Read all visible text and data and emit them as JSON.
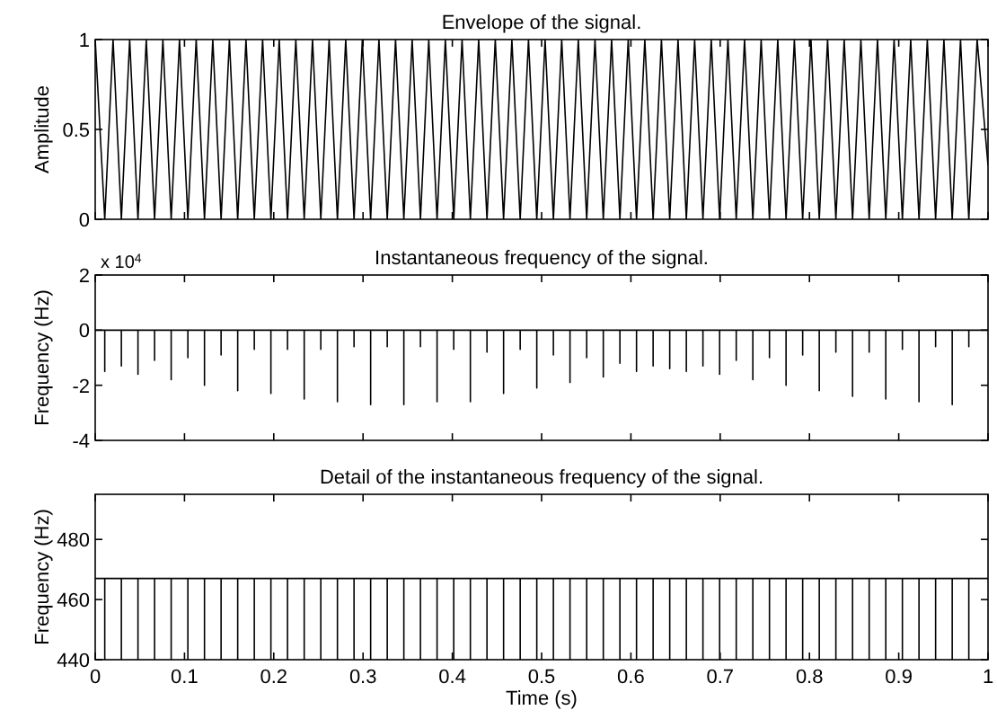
{
  "chart_data": [
    {
      "type": "line",
      "title": "Envelope of the signal.",
      "ylabel": "Amplitude",
      "x": [
        0,
        0.0107,
        0.02,
        0.0293,
        0.0386,
        0.0479,
        0.0572,
        0.0665,
        0.0758,
        0.0851,
        0.0944,
        0.1038,
        0.1131,
        0.1224,
        0.1317,
        0.141,
        0.1503,
        0.1596,
        0.1689,
        0.1782,
        0.1875,
        0.1968,
        0.2061,
        0.2154,
        0.2247,
        0.2341,
        0.2434,
        0.2527,
        0.262,
        0.2713,
        0.2806,
        0.2899,
        0.2992,
        0.3085,
        0.3178,
        0.3271,
        0.3364,
        0.3457,
        0.355,
        0.3643,
        0.3736,
        0.3829,
        0.3922,
        0.4016,
        0.4109,
        0.4202,
        0.4295,
        0.4388,
        0.4481,
        0.4574,
        0.4667,
        0.476,
        0.4853,
        0.4946,
        0.5039,
        0.5132,
        0.5225,
        0.5318,
        0.5411,
        0.5505,
        0.5598,
        0.5691,
        0.5784,
        0.5877,
        0.597,
        0.6063,
        0.6156,
        0.6249,
        0.6342,
        0.6435,
        0.6528,
        0.6621,
        0.6714,
        0.6807,
        0.69,
        0.6994,
        0.7087,
        0.718,
        0.7273,
        0.7366,
        0.7459,
        0.7552,
        0.7645,
        0.7738,
        0.7831,
        0.7924,
        0.8017,
        0.811,
        0.8203,
        0.8296,
        0.8389,
        0.8483,
        0.8576,
        0.8669,
        0.8762,
        0.8855,
        0.8948,
        0.9041,
        0.9134,
        0.9227,
        0.932,
        0.9413,
        0.9506,
        0.9599,
        0.9692,
        0.9785,
        0.9878,
        1
      ],
      "series": [
        {
          "color": "#000000",
          "values": [
            1,
            0,
            1,
            0,
            1,
            0,
            1,
            0,
            1,
            0,
            1,
            0,
            1,
            0,
            1,
            0,
            1,
            0,
            1,
            0,
            1,
            0,
            1,
            0,
            1,
            0,
            1,
            0,
            1,
            0,
            1,
            0,
            1,
            0,
            1,
            0,
            1,
            0,
            1,
            0,
            1,
            0,
            1,
            0,
            1,
            0,
            1,
            0,
            1,
            0,
            1,
            0,
            1,
            0,
            1,
            0,
            1,
            0,
            1,
            0,
            1,
            0,
            1,
            0,
            1,
            0,
            1,
            0,
            1,
            0,
            1,
            0,
            1,
            0,
            1,
            0,
            1,
            0,
            1,
            0,
            1,
            0,
            1,
            0,
            1,
            0,
            1,
            0,
            1,
            0,
            1,
            0,
            1,
            0,
            1,
            0,
            1,
            0,
            1,
            0,
            1,
            0,
            1,
            0,
            1,
            0,
            1,
            0.3
          ]
        }
      ],
      "xlim": [
        0,
        1
      ],
      "ylim": [
        0,
        1
      ],
      "xticks": [
        0,
        0.1,
        0.2,
        0.3,
        0.4,
        0.5,
        0.6,
        0.7,
        0.8,
        0.9,
        1
      ],
      "yticks": [
        0,
        0.5,
        1
      ],
      "tick_labels": "y"
    },
    {
      "type": "line",
      "title": "Instantaneous frequency of the signal.",
      "ylabel": "Frequency (Hz)",
      "annotations": [
        "x 10$^{4}$"
      ],
      "x": [
        0,
        0.0107,
        0.0107,
        0.0107,
        0.0293,
        0.0293,
        0.0293,
        0.0479,
        0.0479,
        0.0479,
        0.0665,
        0.0665,
        0.0665,
        0.0851,
        0.0851,
        0.0851,
        0.1038,
        0.1038,
        0.1038,
        0.1224,
        0.1224,
        0.1224,
        0.141,
        0.141,
        0.141,
        0.1596,
        0.1596,
        0.1596,
        0.1782,
        0.1782,
        0.1782,
        0.1968,
        0.1968,
        0.1968,
        0.2154,
        0.2154,
        0.2154,
        0.2341,
        0.2341,
        0.2341,
        0.2527,
        0.2527,
        0.2527,
        0.2713,
        0.2713,
        0.2713,
        0.2899,
        0.2899,
        0.2899,
        0.3085,
        0.3085,
        0.3085,
        0.3271,
        0.3271,
        0.3271,
        0.3457,
        0.3457,
        0.3457,
        0.3643,
        0.3643,
        0.3643,
        0.3829,
        0.3829,
        0.3829,
        0.4016,
        0.4016,
        0.4016,
        0.4202,
        0.4202,
        0.4202,
        0.4388,
        0.4388,
        0.4388,
        0.4574,
        0.4574,
        0.4574,
        0.476,
        0.476,
        0.476,
        0.4946,
        0.4946,
        0.4946,
        0.5132,
        0.5132,
        0.5132,
        0.5318,
        0.5318,
        0.5318,
        0.5505,
        0.5505,
        0.5505,
        0.5691,
        0.5691,
        0.5691,
        0.5877,
        0.5877,
        0.5877,
        0.6063,
        0.6063,
        0.6063,
        0.6249,
        0.6249,
        0.6249,
        0.6435,
        0.6435,
        0.6435,
        0.6621,
        0.6621,
        0.6621,
        0.6807,
        0.6807,
        0.6807,
        0.6994,
        0.6994,
        0.6994,
        0.718,
        0.718,
        0.718,
        0.7366,
        0.7366,
        0.7366,
        0.7552,
        0.7552,
        0.7552,
        0.7738,
        0.7738,
        0.7738,
        0.7924,
        0.7924,
        0.7924,
        0.811,
        0.811,
        0.811,
        0.8296,
        0.8296,
        0.8296,
        0.8483,
        0.8483,
        0.8483,
        0.8669,
        0.8669,
        0.8669,
        0.8855,
        0.8855,
        0.8855,
        0.9041,
        0.9041,
        0.9041,
        0.9227,
        0.9227,
        0.9227,
        0.9413,
        0.9413,
        0.9413,
        0.9599,
        0.9599,
        0.9599,
        0.9785,
        0.9785,
        0.9785,
        1
      ],
      "series": [
        {
          "color": "#000000",
          "values": [
            0,
            0,
            -1.5,
            0,
            0,
            -1.3,
            0,
            0,
            -1.6,
            0,
            0,
            -1.1,
            0,
            0,
            -1.8,
            0,
            0,
            -1.0,
            0,
            0,
            -2.0,
            0,
            0,
            -0.9,
            0,
            0,
            -2.2,
            0,
            0,
            -0.7,
            0,
            0,
            -2.3,
            0,
            0,
            -0.7,
            0,
            0,
            -2.5,
            0,
            0,
            -0.7,
            0,
            0,
            -2.6,
            0,
            0,
            -0.6,
            0,
            0,
            -2.7,
            0,
            0,
            -0.6,
            0,
            0,
            -2.7,
            0,
            0,
            -0.6,
            0,
            0,
            -2.6,
            0,
            0,
            -0.7,
            0,
            0,
            -2.6,
            0,
            0,
            -0.8,
            0,
            0,
            -2.3,
            0,
            0,
            -0.7,
            0,
            0,
            -2.1,
            0,
            0,
            -0.9,
            0,
            0,
            -1.9,
            0,
            0,
            -1.0,
            0,
            0,
            -1.7,
            0,
            0,
            -1.2,
            0,
            0,
            -1.5,
            0,
            0,
            -1.3,
            0,
            0,
            -1.4,
            0,
            0,
            -1.5,
            0,
            0,
            -1.3,
            0,
            0,
            -1.6,
            0,
            0,
            -1.1,
            0,
            0,
            -1.8,
            0,
            0,
            -1.0,
            0,
            0,
            -2.0,
            0,
            0,
            -0.9,
            0,
            0,
            -2.2,
            0,
            0,
            -0.8,
            0,
            0,
            -2.4,
            0,
            0,
            -0.8,
            0,
            0,
            -2.5,
            0,
            0,
            -0.7,
            0,
            0,
            -2.6,
            0,
            0,
            -0.6,
            0,
            0,
            -2.7,
            0,
            0,
            -0.6,
            0,
            0
          ]
        }
      ],
      "xlim": [
        0,
        1
      ],
      "ylim": [
        -4,
        2
      ],
      "xticks": [
        0,
        0.1,
        0.2,
        0.3,
        0.4,
        0.5,
        0.6,
        0.7,
        0.8,
        0.9,
        1
      ],
      "yticks": [
        -4,
        -2,
        0,
        2
      ],
      "tick_labels": "y"
    },
    {
      "type": "line",
      "title": "Detail of the instantaneous frequency of the signal.",
      "xlabel": "Time (s)",
      "ylabel": "Frequency (Hz)",
      "x": [
        0,
        0.0107,
        0.0107,
        0.0107,
        0.0293,
        0.0293,
        0.0293,
        0.0479,
        0.0479,
        0.0479,
        0.0665,
        0.0665,
        0.0665,
        0.0851,
        0.0851,
        0.0851,
        0.1038,
        0.1038,
        0.1038,
        0.1224,
        0.1224,
        0.1224,
        0.141,
        0.141,
        0.141,
        0.1596,
        0.1596,
        0.1596,
        0.1782,
        0.1782,
        0.1782,
        0.1968,
        0.1968,
        0.1968,
        0.2154,
        0.2154,
        0.2154,
        0.2341,
        0.2341,
        0.2341,
        0.2527,
        0.2527,
        0.2527,
        0.2713,
        0.2713,
        0.2713,
        0.2899,
        0.2899,
        0.2899,
        0.3085,
        0.3085,
        0.3085,
        0.3271,
        0.3271,
        0.3271,
        0.3457,
        0.3457,
        0.3457,
        0.3643,
        0.3643,
        0.3643,
        0.3829,
        0.3829,
        0.3829,
        0.4016,
        0.4016,
        0.4016,
        0.4202,
        0.4202,
        0.4202,
        0.4388,
        0.4388,
        0.4388,
        0.4574,
        0.4574,
        0.4574,
        0.476,
        0.476,
        0.476,
        0.4946,
        0.4946,
        0.4946,
        0.5132,
        0.5132,
        0.5132,
        0.5318,
        0.5318,
        0.5318,
        0.5505,
        0.5505,
        0.5505,
        0.5691,
        0.5691,
        0.5691,
        0.5877,
        0.5877,
        0.5877,
        0.6063,
        0.6063,
        0.6063,
        0.6249,
        0.6249,
        0.6249,
        0.6435,
        0.6435,
        0.6435,
        0.6621,
        0.6621,
        0.6621,
        0.6807,
        0.6807,
        0.6807,
        0.6994,
        0.6994,
        0.6994,
        0.718,
        0.718,
        0.718,
        0.7366,
        0.7366,
        0.7366,
        0.7552,
        0.7552,
        0.7552,
        0.7738,
        0.7738,
        0.7738,
        0.7924,
        0.7924,
        0.7924,
        0.811,
        0.811,
        0.811,
        0.8296,
        0.8296,
        0.8296,
        0.8483,
        0.8483,
        0.8483,
        0.8669,
        0.8669,
        0.8669,
        0.8855,
        0.8855,
        0.8855,
        0.9041,
        0.9041,
        0.9041,
        0.9227,
        0.9227,
        0.9227,
        0.9413,
        0.9413,
        0.9413,
        0.9599,
        0.9599,
        0.9599,
        0.9785,
        0.9785,
        0.9785,
        1
      ],
      "series": [
        {
          "color": "#000000",
          "values": [
            467,
            467,
            440,
            467,
            467,
            440,
            467,
            467,
            440,
            467,
            467,
            440,
            467,
            467,
            440,
            467,
            467,
            440,
            467,
            467,
            440,
            467,
            467,
            440,
            467,
            467,
            440,
            467,
            467,
            440,
            467,
            467,
            440,
            467,
            467,
            440,
            467,
            467,
            440,
            467,
            467,
            440,
            467,
            467,
            440,
            467,
            467,
            440,
            467,
            467,
            440,
            467,
            467,
            440,
            467,
            467,
            440,
            467,
            467,
            440,
            467,
            467,
            440,
            467,
            467,
            440,
            467,
            467,
            440,
            467,
            467,
            440,
            467,
            467,
            440,
            467,
            467,
            440,
            467,
            467,
            440,
            467,
            467,
            440,
            467,
            467,
            440,
            467,
            467,
            440,
            467,
            467,
            440,
            467,
            467,
            440,
            467,
            467,
            440,
            467,
            467,
            440,
            467,
            467,
            440,
            467,
            467,
            440,
            467,
            467,
            440,
            467,
            467,
            440,
            467,
            467,
            440,
            467,
            467,
            440,
            467,
            467,
            440,
            467,
            467,
            440,
            467,
            467,
            440,
            467,
            467,
            440,
            467,
            467,
            440,
            467,
            467,
            440,
            467,
            467,
            440,
            467,
            467,
            440,
            467,
            467,
            440,
            467,
            467,
            440,
            467,
            467,
            440,
            467,
            467,
            440,
            467,
            467,
            440,
            467,
            467
          ]
        }
      ],
      "xlim": [
        0,
        1
      ],
      "ylim": [
        440,
        495
      ],
      "xticks": [
        0,
        0.1,
        0.2,
        0.3,
        0.4,
        0.5,
        0.6,
        0.7,
        0.8,
        0.9,
        1
      ],
      "yticks": [
        440,
        460,
        480
      ]
    }
  ]
}
